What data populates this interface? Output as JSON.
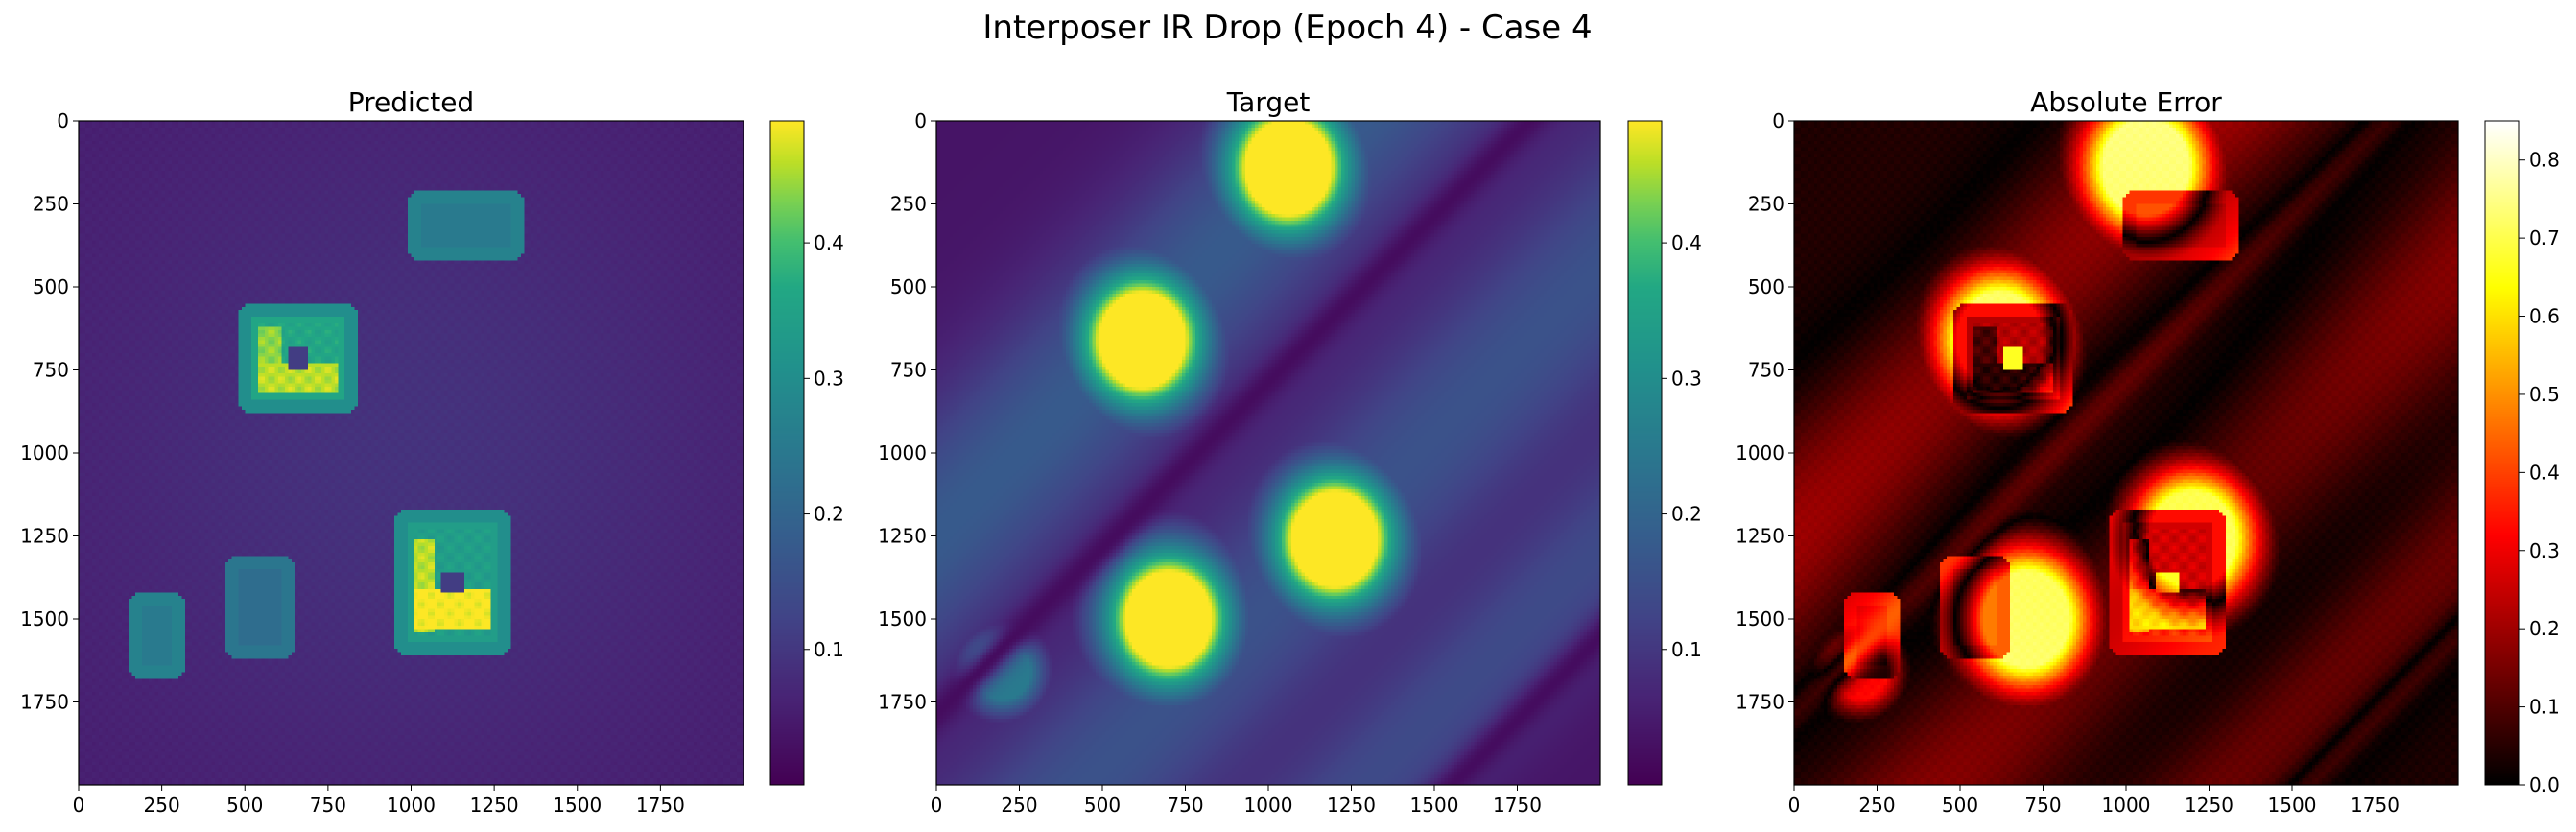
{
  "figure": {
    "suptitle": "Interposer IR Drop (Epoch 4) - Case 4"
  },
  "chart_data": [
    {
      "type": "heatmap",
      "title": "Predicted",
      "colormap": "viridis",
      "xlim": [
        0,
        2000
      ],
      "ylim": [
        2000,
        0
      ],
      "xticks": [
        0,
        250,
        500,
        750,
        1000,
        1250,
        1500,
        1750
      ],
      "yticks": [
        0,
        250,
        500,
        750,
        1000,
        1250,
        1500,
        1750
      ],
      "colorbar": {
        "range": [
          0.0,
          0.49
        ],
        "ticks": [
          0.1,
          0.2,
          0.3,
          0.4
        ]
      },
      "features": [
        {
          "kind": "background",
          "value": 0.05,
          "center_value": 0.09
        },
        {
          "kind": "die",
          "x": [
            950,
            1300
          ],
          "y": [
            1170,
            1610
          ],
          "edge_value": 0.3,
          "inner_value": 0.34,
          "hot_value": 0.49
        },
        {
          "kind": "die",
          "x": [
            480,
            840
          ],
          "y": [
            550,
            880
          ],
          "edge_value": 0.3,
          "inner_value": 0.36,
          "hot_value": 0.46
        },
        {
          "kind": "die",
          "x": [
            990,
            1340
          ],
          "y": [
            210,
            420
          ],
          "edge_value": 0.27,
          "inner_value": 0.25
        },
        {
          "kind": "die",
          "x": [
            440,
            650
          ],
          "y": [
            1310,
            1620
          ],
          "edge_value": 0.24,
          "inner_value": 0.22
        },
        {
          "kind": "die",
          "x": [
            150,
            320
          ],
          "y": [
            1420,
            1680
          ],
          "edge_value": 0.27,
          "inner_value": 0.25
        }
      ]
    },
    {
      "type": "heatmap",
      "title": "Target",
      "colormap": "viridis",
      "xlim": [
        0,
        2000
      ],
      "ylim": [
        2000,
        0
      ],
      "xticks": [
        0,
        250,
        500,
        750,
        1000,
        1250,
        1500,
        1750
      ],
      "yticks": [
        0,
        250,
        500,
        750,
        1000,
        1250,
        1500,
        1750
      ],
      "colorbar": {
        "range": [
          0.0,
          0.49
        ],
        "ticks": [
          0.1,
          0.2,
          0.3,
          0.4
        ]
      },
      "features": [
        {
          "kind": "hotspot",
          "x": 1060,
          "y": 140,
          "peak": 0.49
        },
        {
          "kind": "hotspot",
          "x": 620,
          "y": 660,
          "peak": 0.49
        },
        {
          "kind": "hotspot",
          "x": 1200,
          "y": 1260,
          "peak": 0.49
        },
        {
          "kind": "hotspot",
          "x": 700,
          "y": 1500,
          "peak": 0.49
        },
        {
          "kind": "hotspot",
          "x": 200,
          "y": 1660,
          "peak": 0.25
        },
        {
          "kind": "diagonal_trough",
          "offset": 850,
          "value": 0.02
        },
        {
          "kind": "diagonal_trough",
          "offset": 1860,
          "value": 0.02
        }
      ]
    },
    {
      "type": "heatmap",
      "title": "Absolute Error",
      "colormap": "hot",
      "xlim": [
        0,
        2000
      ],
      "ylim": [
        2000,
        0
      ],
      "xticks": [
        0,
        250,
        500,
        750,
        1000,
        1250,
        1500,
        1750
      ],
      "yticks": [
        0,
        250,
        500,
        750,
        1000,
        1250,
        1500,
        1750
      ],
      "colorbar": {
        "range": [
          0.0,
          0.85
        ],
        "ticks": [
          0.0,
          0.1,
          0.2,
          0.3,
          0.4,
          0.5,
          0.6,
          0.7,
          0.8
        ]
      },
      "features": [
        {
          "kind": "derived",
          "from": [
            "Target",
            "Predicted"
          ],
          "op": "abs-difference"
        }
      ]
    }
  ]
}
